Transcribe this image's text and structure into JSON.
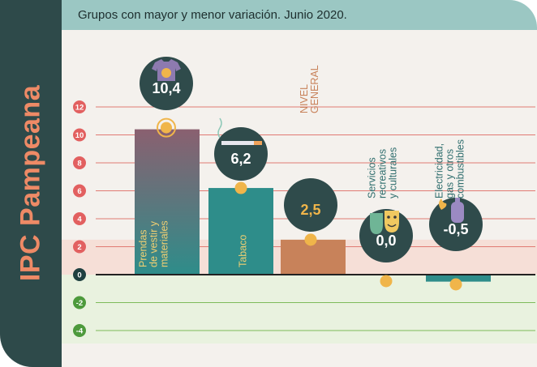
{
  "sidebar": {
    "title": "IPC Pampeana"
  },
  "header": {
    "title": "Grupos con mayor y menor variación. Junio 2020."
  },
  "colors": {
    "panel": "#f4f1ed",
    "positive_band": "#f6dcd2",
    "negative_band": "#e9f2df",
    "positive_grid": "#e07a73",
    "negative_grid": "#7dbb5a",
    "tick_positive": "#e26060",
    "tick_negative": "#4d9a3c",
    "tick_zero": "#1f4040",
    "teal": "#2e8d8a",
    "bar_top_mauve": "#8a6070",
    "general": "#c8825a",
    "badge": "#2f4b4b",
    "dot": "#f0b54a",
    "label_light": "#f0cf72",
    "label_dark": "#2f6e6e"
  },
  "chart_data": {
    "type": "bar",
    "title": "Grupos con mayor y menor variación. Junio 2020.",
    "ylabel": "",
    "xlabel": "",
    "ylim": [
      -5,
      13
    ],
    "yticks": [
      12,
      10,
      8,
      6,
      4,
      2,
      0,
      -2,
      -4
    ],
    "ytick_labels": [
      "12",
      "10",
      "8",
      "6",
      "4",
      "2",
      "0",
      "-2",
      "-4"
    ],
    "categories": [
      "Prendas de vestir y materiales",
      "Tabaco",
      "NIVEL GENERAL",
      "Servicios recreativos y culturales",
      "Electricidad, gas y otros combustibles"
    ],
    "category_lines": [
      [
        "Prendas",
        "de vestir y",
        "materiales"
      ],
      [
        "Tabaco"
      ],
      [
        "NIVEL",
        "GENERAL"
      ],
      [
        "Servicios",
        "recreativos",
        "y culturales"
      ],
      [
        "Electricidad,",
        "gas y otros",
        "combustibles"
      ]
    ],
    "values": [
      10.4,
      6.2,
      2.5,
      0.0,
      -0.5
    ],
    "value_labels": [
      "10,4",
      "6,2",
      "2,5",
      "0,0",
      "-0,5"
    ],
    "icons": [
      "shirt-icon",
      "cigarette-icon",
      "",
      "theater-masks-icon",
      "gas-cylinder-icon"
    ]
  }
}
